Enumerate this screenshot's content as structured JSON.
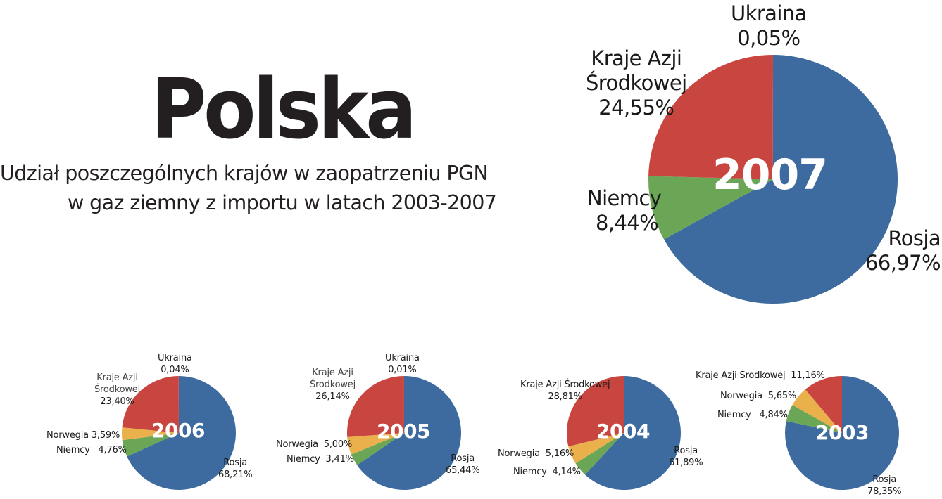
{
  "header": {
    "title": "Polska",
    "subtitle_line1": "Udział poszczególnych krajów w zaopatrzeniu PGN",
    "subtitle_line2": "w gaz ziemny z importu w latach 2003-2007"
  },
  "colors": {
    "Rosja": "#3e6b9f",
    "Niemcy": "#6ba657",
    "Norwegia": "#eab04c",
    "Kraje Azji Środkowej": "#c9453f",
    "Ukraina": "#c9453f"
  },
  "chart_data": [
    {
      "type": "pie",
      "title": "2007",
      "order_clockwise_from_top": [
        "Rosja",
        "Niemcy",
        "Norwegia",
        "Kraje Azji Środkowej",
        "Ukraina"
      ],
      "slices": [
        {
          "label": "Rosja",
          "value": 66.97,
          "display": "66,97%"
        },
        {
          "label": "Niemcy",
          "value": 8.44,
          "display": "8,44%"
        },
        {
          "label": "Kraje Azji Środkowej",
          "value": 24.55,
          "display": "24,55%"
        },
        {
          "label": "Ukraina",
          "value": 0.05,
          "display": "0,05%"
        }
      ]
    },
    {
      "type": "pie",
      "title": "2006",
      "slices": [
        {
          "label": "Rosja",
          "value": 68.21,
          "display": "68,21%"
        },
        {
          "label": "Niemcy",
          "value": 4.76,
          "display": "4,76%"
        },
        {
          "label": "Norwegia",
          "value": 3.59,
          "display": "3,59%"
        },
        {
          "label": "Kraje Azji Środkowej",
          "value": 23.4,
          "display": "23,40%"
        },
        {
          "label": "Ukraina",
          "value": 0.04,
          "display": "0,04%"
        }
      ]
    },
    {
      "type": "pie",
      "title": "2005",
      "slices": [
        {
          "label": "Rosja",
          "value": 65.44,
          "display": "65,44%"
        },
        {
          "label": "Niemcy",
          "value": 3.41,
          "display": "3,41%"
        },
        {
          "label": "Norwegia",
          "value": 5.0,
          "display": "5,00%"
        },
        {
          "label": "Kraje Azji Środkowej",
          "value": 26.14,
          "display": "26,14%"
        },
        {
          "label": "Ukraina",
          "value": 0.01,
          "display": "0,01%"
        }
      ]
    },
    {
      "type": "pie",
      "title": "2004",
      "slices": [
        {
          "label": "Rosja",
          "value": 61.89,
          "display": "61,89%"
        },
        {
          "label": "Niemcy",
          "value": 4.14,
          "display": "4,14%"
        },
        {
          "label": "Norwegia",
          "value": 5.16,
          "display": "5,16%"
        },
        {
          "label": "Kraje Azji Środkowej",
          "value": 28.81,
          "display": "28,81%"
        }
      ]
    },
    {
      "type": "pie",
      "title": "2003",
      "slices": [
        {
          "label": "Rosja",
          "value": 78.35,
          "display": "78,35%"
        },
        {
          "label": "Niemcy",
          "value": 4.84,
          "display": "4,84%"
        },
        {
          "label": "Norwegia",
          "value": 5.65,
          "display": "5,65%"
        },
        {
          "label": "Kraje Azji Środkowej",
          "value": 11.16,
          "display": "11,16%"
        }
      ]
    }
  ],
  "labels": {
    "y2007": {
      "ukraina": "Ukraina",
      "ukraina_pct": "0,05%",
      "kraje_l1": "Kraje Azji",
      "kraje_l2": "Środkowej",
      "kraje_pct": "24,55%",
      "niemcy": "Niemcy",
      "niemcy_pct": "8,44%",
      "rosja": "Rosja",
      "rosja_pct": "66,97%"
    },
    "y2006": {
      "ukraina": "Ukraina",
      "ukraina_pct": "0,04%",
      "kraje_l1": "Kraje Azji",
      "kraje_l2": "Środkowej",
      "kraje_pct": "23,40%",
      "norwegia": "Norwegia 3,59%",
      "niemcy": "Niemcy   4,76%",
      "rosja": "Rosja",
      "rosja_pct": "68,21%"
    },
    "y2005": {
      "ukraina": "Ukraina",
      "ukraina_pct": "0,01%",
      "kraje_l1": "Kraje Azji",
      "kraje_l2": "Środkowej",
      "kraje_pct": "26,14%",
      "norwegia": "Norwegia  5,00%",
      "niemcy": "Niemcy  3,41%",
      "rosja": "Rosja",
      "rosja_pct": "65,44%"
    },
    "y2004": {
      "kraje_l1": "Kraje Azji Środkowej",
      "kraje_pct": "28,81%",
      "norwegia": "Norwegia  5,16%",
      "niemcy": "Niemcy  4,14%",
      "rosja": "Rosja",
      "rosja_pct": "61,89%"
    },
    "y2003": {
      "kraje": "Kraje Azji Środkowej  11,16%",
      "norwegia": "Norwegia  5,65%",
      "niemcy": "Niemcy   4,84%",
      "rosja": "Rosja",
      "rosja_pct": "78,35%"
    }
  }
}
